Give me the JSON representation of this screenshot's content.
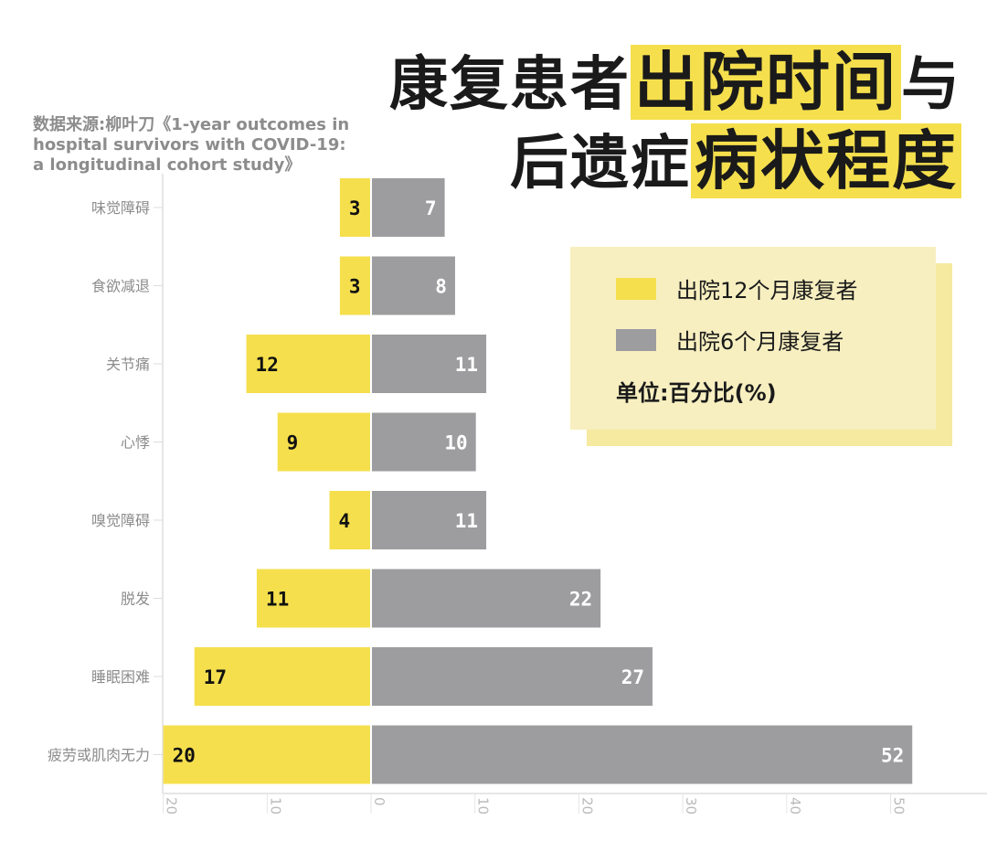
{
  "title": {
    "line1_plain": "康复患者",
    "line1_highlight": "出院时间",
    "line1_tail": "与",
    "line2_plain": "后遗症",
    "line2_highlight": "病状程度"
  },
  "source": "数据来源:柳叶刀《1-year outcomes in hospital survivors with COVID-19: a longitudinal cohort study》",
  "legend": {
    "items": [
      {
        "label": "出院12个月康复者",
        "color": "#f5df4d"
      },
      {
        "label": "出院6个月康复者",
        "color": "#9d9d9f"
      }
    ],
    "unit": "单位:百分比(%)"
  },
  "chart_data": {
    "type": "bar",
    "orientation": "horizontal-diverging",
    "categories": [
      "味觉障碍",
      "食欲减退",
      "关节痛",
      "心悸",
      "嗅觉障碍",
      "脱发",
      "睡眠困难",
      "疲劳或肌肉无力"
    ],
    "series": [
      {
        "name": "出院12个月康复者",
        "color": "#f5df4d",
        "values": [
          3,
          3,
          12,
          9,
          4,
          11,
          17,
          20
        ]
      },
      {
        "name": "出院6个月康复者",
        "color": "#9d9d9f",
        "values": [
          7,
          8,
          11,
          10,
          11,
          22,
          27,
          52
        ]
      }
    ],
    "xticks": [
      "20",
      "10",
      "0",
      "10",
      "20",
      "30",
      "40",
      "50"
    ],
    "xtick_values": [
      -20,
      -10,
      0,
      10,
      20,
      30,
      40,
      50
    ],
    "xlim": [
      -20,
      52
    ],
    "ylabel": "",
    "xlabel": ""
  }
}
